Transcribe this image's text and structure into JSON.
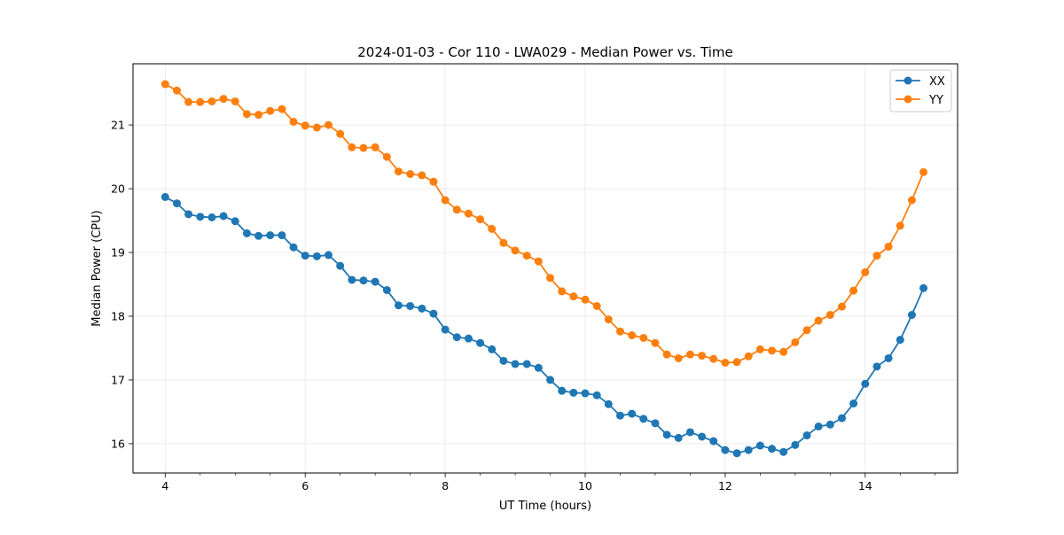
{
  "chart_data": {
    "type": "line",
    "title": "2024-01-03 - Cor 110 - LWA029 - Median Power vs. Time",
    "xlabel": "UT Time (hours)",
    "ylabel": "Median Power (CPU)",
    "xlim": [
      3.54,
      15.32
    ],
    "ylim": [
      15.54,
      21.96
    ],
    "xticks": [
      4,
      6,
      8,
      10,
      12,
      14
    ],
    "yticks": [
      16,
      17,
      18,
      19,
      20,
      21
    ],
    "xtick_labels": [
      "4",
      "6",
      "8",
      "10",
      "12",
      "14"
    ],
    "ytick_labels": [
      "16",
      "17",
      "18",
      "19",
      "20",
      "21"
    ],
    "grid": true,
    "legend_position": "top-right",
    "x": [
      4.0,
      4.167,
      4.333,
      4.5,
      4.667,
      4.833,
      5.0,
      5.167,
      5.333,
      5.5,
      5.667,
      5.833,
      6.0,
      6.167,
      6.333,
      6.5,
      6.667,
      6.833,
      7.0,
      7.167,
      7.333,
      7.5,
      7.667,
      7.833,
      8.0,
      8.167,
      8.333,
      8.5,
      8.667,
      8.833,
      9.0,
      9.167,
      9.333,
      9.5,
      9.667,
      9.833,
      10.0,
      10.167,
      10.333,
      10.5,
      10.667,
      10.833,
      11.0,
      11.167,
      11.333,
      11.5,
      11.667,
      11.833,
      12.0,
      12.167,
      12.333,
      12.5,
      12.667,
      12.833,
      13.0,
      13.167,
      13.333,
      13.5,
      13.667,
      13.833,
      14.0,
      14.167,
      14.333,
      14.5,
      14.667,
      14.833
    ],
    "series": [
      {
        "name": "XX",
        "color": "#1f77b4",
        "values": [
          19.87,
          19.77,
          19.6,
          19.56,
          19.55,
          19.57,
          19.49,
          19.3,
          19.26,
          19.27,
          19.27,
          19.08,
          18.95,
          18.94,
          18.96,
          18.79,
          18.57,
          18.56,
          18.54,
          18.41,
          18.17,
          18.16,
          18.12,
          18.04,
          17.79,
          17.67,
          17.65,
          17.58,
          17.48,
          17.3,
          17.25,
          17.25,
          17.19,
          17.0,
          16.83,
          16.8,
          16.79,
          16.76,
          16.62,
          16.44,
          16.47,
          16.39,
          16.32,
          16.14,
          16.09,
          16.18,
          16.11,
          16.04,
          15.9,
          15.85,
          15.9,
          15.97,
          15.92,
          15.87,
          15.98,
          16.13,
          16.27,
          16.3,
          16.4,
          16.63,
          16.94,
          17.21,
          17.34,
          17.63,
          18.02,
          18.44
        ]
      },
      {
        "name": "YY",
        "color": "#ff7f0e",
        "values": [
          21.64,
          21.54,
          21.36,
          21.36,
          21.37,
          21.41,
          21.37,
          21.17,
          21.16,
          21.22,
          21.25,
          21.05,
          20.99,
          20.96,
          21.0,
          20.86,
          20.65,
          20.64,
          20.65,
          20.5,
          20.27,
          20.23,
          20.21,
          20.11,
          19.82,
          19.67,
          19.61,
          19.52,
          19.37,
          19.15,
          19.03,
          18.95,
          18.86,
          18.6,
          18.39,
          18.31,
          18.26,
          18.16,
          17.95,
          17.76,
          17.7,
          17.66,
          17.58,
          17.4,
          17.34,
          17.4,
          17.38,
          17.33,
          17.27,
          17.28,
          17.37,
          17.48,
          17.46,
          17.44,
          17.59,
          17.78,
          17.93,
          18.02,
          18.15,
          18.4,
          18.69,
          18.95,
          19.09,
          19.42,
          19.82,
          20.26
        ]
      }
    ]
  }
}
